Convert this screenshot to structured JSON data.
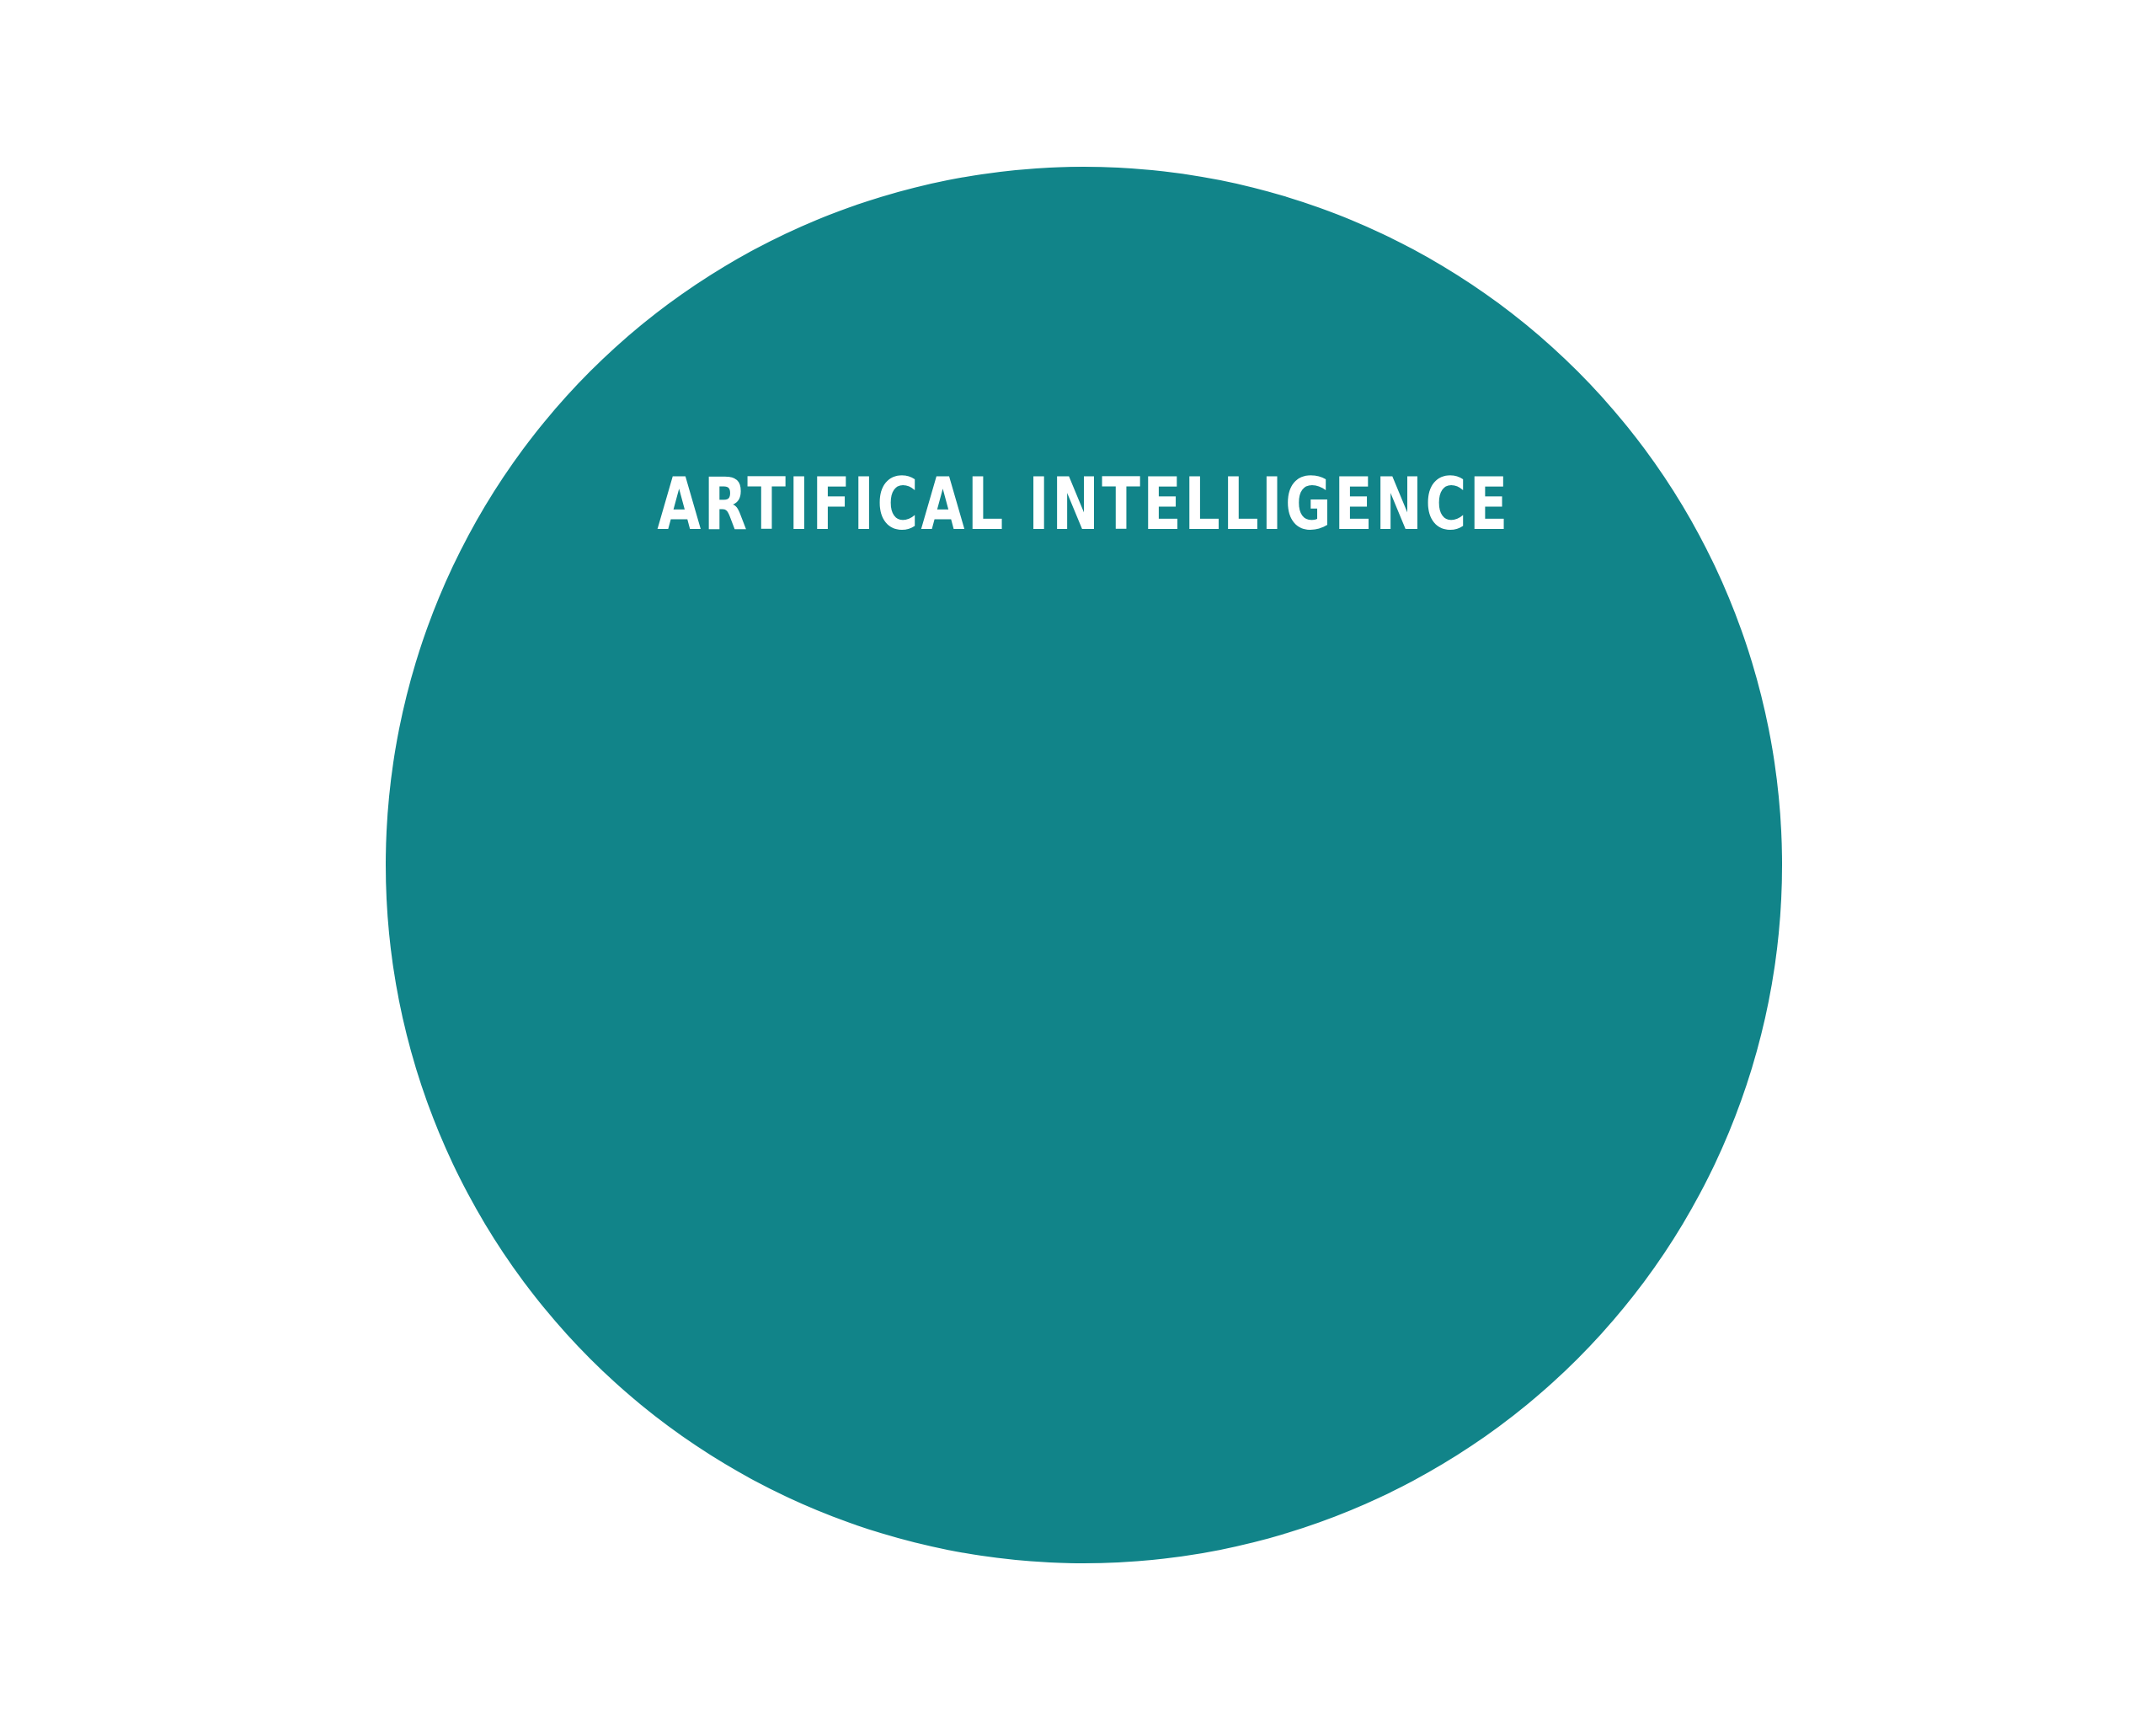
{
  "diagram": {
    "circle": {
      "label": "ARTIFICAL INTELLIGENCE",
      "fill_color": "#118489",
      "text_color": "#ffffff"
    }
  }
}
